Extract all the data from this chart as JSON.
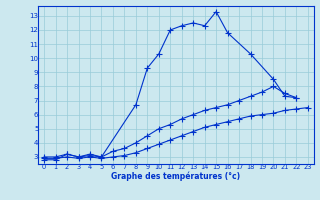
{
  "xlabel": "Graphe des températures (°c)",
  "background_color": "#cce8ef",
  "grid_color": "#99ccd9",
  "line_color": "#0033cc",
  "xlim": [
    -0.5,
    23.5
  ],
  "ylim": [
    2.5,
    13.7
  ],
  "xticks": [
    0,
    1,
    2,
    3,
    4,
    5,
    6,
    7,
    8,
    9,
    10,
    11,
    12,
    13,
    14,
    15,
    16,
    17,
    18,
    19,
    20,
    21,
    22,
    23
  ],
  "yticks": [
    3,
    4,
    5,
    6,
    7,
    8,
    9,
    10,
    11,
    12,
    13
  ],
  "line1_x": [
    0,
    1,
    2,
    3,
    4,
    5,
    8,
    9,
    10,
    11,
    12,
    13,
    14,
    15,
    16,
    18,
    20,
    21,
    22
  ],
  "line1_y": [
    2.8,
    2.8,
    3.2,
    3.0,
    3.1,
    3.0,
    6.7,
    9.3,
    10.3,
    12.0,
    12.3,
    12.5,
    12.3,
    13.3,
    11.8,
    10.3,
    8.5,
    7.3,
    7.2
  ],
  "line2_x": [
    0,
    1,
    2,
    3,
    4,
    5,
    6,
    7,
    8,
    9,
    10,
    11,
    12,
    13,
    14,
    15,
    16,
    17,
    18,
    19,
    20,
    21,
    22
  ],
  "line2_y": [
    3.0,
    3.0,
    3.2,
    3.0,
    3.2,
    3.0,
    3.4,
    3.6,
    4.0,
    4.5,
    5.0,
    5.3,
    5.7,
    6.0,
    6.3,
    6.5,
    6.7,
    7.0,
    7.3,
    7.6,
    8.0,
    7.5,
    7.2
  ],
  "line3_x": [
    0,
    1,
    2,
    3,
    4,
    5,
    6,
    7,
    8,
    9,
    10,
    11,
    12,
    13,
    14,
    15,
    16,
    17,
    18,
    19,
    20,
    21,
    22,
    23
  ],
  "line3_y": [
    2.9,
    2.9,
    3.0,
    2.9,
    3.0,
    2.9,
    3.0,
    3.1,
    3.3,
    3.6,
    3.9,
    4.2,
    4.5,
    4.8,
    5.1,
    5.3,
    5.5,
    5.7,
    5.9,
    6.0,
    6.1,
    6.3,
    6.4,
    6.5
  ]
}
